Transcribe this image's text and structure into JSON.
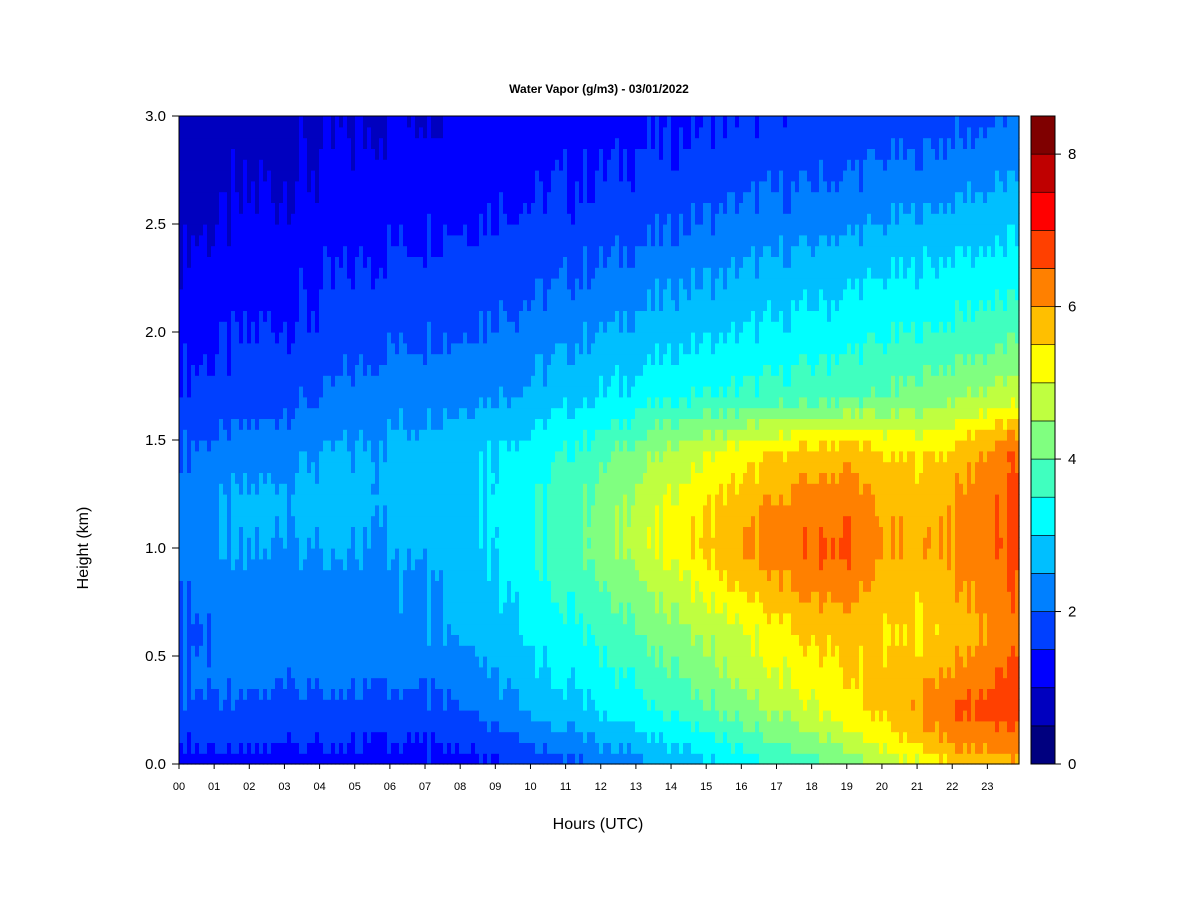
{
  "chart_data": {
    "type": "heatmap",
    "title": "Water Vapor (g/m3) - 03/01/2022",
    "xlabel": "Hours (UTC)",
    "ylabel": "Height (km)",
    "x_ticks": [
      "00",
      "01",
      "02",
      "03",
      "04",
      "05",
      "06",
      "07",
      "08",
      "09",
      "10",
      "11",
      "12",
      "13",
      "14",
      "15",
      "16",
      "17",
      "18",
      "19",
      "20",
      "21",
      "22",
      "23"
    ],
    "x_range": [
      0,
      23.9
    ],
    "y_ticks": [
      "0.0",
      "0.5",
      "1.0",
      "1.5",
      "2.0",
      "2.5",
      "3.0"
    ],
    "y_range": [
      0,
      3.0
    ],
    "colorbar": {
      "ticks": [
        "0",
        "2",
        "4",
        "6",
        "8"
      ],
      "range": [
        0,
        8.5
      ],
      "levels": [
        0,
        0.5,
        1,
        1.5,
        2,
        2.5,
        3,
        3.5,
        4,
        4.5,
        5,
        5.5,
        6,
        6.5,
        7,
        7.5,
        8,
        8.5
      ],
      "colors": [
        "#00007F",
        "#0000BF",
        "#0000FF",
        "#0040FF",
        "#0080FF",
        "#00BFFF",
        "#00FFFF",
        "#40FFBF",
        "#80FF80",
        "#BFFF40",
        "#FFFF00",
        "#FFBF00",
        "#FF8000",
        "#FF4000",
        "#FF0000",
        "#BF0000",
        "#7F0000"
      ]
    },
    "heights_km": [
      0.0,
      0.1,
      0.25,
      0.4,
      0.6,
      0.85,
      1.0,
      1.2,
      1.45,
      1.7,
      2.0,
      2.3,
      2.6,
      3.0
    ],
    "hours": [
      0,
      2,
      4,
      6,
      8,
      10,
      12,
      14,
      16,
      18,
      19,
      20,
      21,
      22,
      23.9
    ],
    "values": [
      [
        1.3,
        1.2,
        1.2,
        1.3,
        1.4,
        1.6,
        2.1,
        2.6,
        3.2,
        3.8,
        4.2,
        4.6,
        5.0,
        5.5,
        5.8
      ],
      [
        1.6,
        1.6,
        1.5,
        1.5,
        1.6,
        2.0,
        2.5,
        3.0,
        3.6,
        4.3,
        4.7,
        5.1,
        5.6,
        6.1,
        6.3
      ],
      [
        1.9,
        1.8,
        1.8,
        1.8,
        2.0,
        2.6,
        3.0,
        3.6,
        4.2,
        4.9,
        5.3,
        5.6,
        6.0,
        6.6,
        6.7
      ],
      [
        2.1,
        2.1,
        2.1,
        2.1,
        2.2,
        2.8,
        3.3,
        3.9,
        4.6,
        5.2,
        5.5,
        5.6,
        5.9,
        6.1,
        6.7
      ],
      [
        1.9,
        2.2,
        2.2,
        2.3,
        2.6,
        3.1,
        3.6,
        4.3,
        4.9,
        5.6,
        5.7,
        5.5,
        5.4,
        5.7,
        6.3
      ],
      [
        2.1,
        2.3,
        2.3,
        2.4,
        2.7,
        3.3,
        4.0,
        4.8,
        5.6,
        6.2,
        6.3,
        5.8,
        5.7,
        5.9,
        6.5
      ],
      [
        2.3,
        2.5,
        2.5,
        2.5,
        2.8,
        3.4,
        4.3,
        5.2,
        6.0,
        6.5,
        6.6,
        6.0,
        5.9,
        6.1,
        6.6
      ],
      [
        2.3,
        2.6,
        2.7,
        2.6,
        2.9,
        3.4,
        4.2,
        5.1,
        5.8,
        6.3,
        6.4,
        5.9,
        5.8,
        6.0,
        6.6
      ],
      [
        2.0,
        2.2,
        2.5,
        2.6,
        2.9,
        3.2,
        3.8,
        4.6,
        5.2,
        5.7,
        5.8,
        5.5,
        5.4,
        5.6,
        6.5
      ],
      [
        1.6,
        1.7,
        2.0,
        2.3,
        2.4,
        2.6,
        3.0,
        3.4,
        3.6,
        3.8,
        3.9,
        4.0,
        4.2,
        4.4,
        4.8
      ],
      [
        1.3,
        1.5,
        1.6,
        1.9,
        2.0,
        2.2,
        2.5,
        2.8,
        3.0,
        3.2,
        3.3,
        3.4,
        3.5,
        3.6,
        3.9
      ],
      [
        1.1,
        1.2,
        1.4,
        1.6,
        1.7,
        1.8,
        2.0,
        2.3,
        2.5,
        2.7,
        2.8,
        2.9,
        3.0,
        3.1,
        3.2
      ],
      [
        0.8,
        1.0,
        1.1,
        1.3,
        1.4,
        1.5,
        1.6,
        1.8,
        2.0,
        2.1,
        2.2,
        2.3,
        2.4,
        2.5,
        2.7
      ],
      [
        0.7,
        0.8,
        0.9,
        1.0,
        1.1,
        1.2,
        1.3,
        1.4,
        1.5,
        1.6,
        1.6,
        1.7,
        1.7,
        1.8,
        2.0
      ]
    ]
  }
}
